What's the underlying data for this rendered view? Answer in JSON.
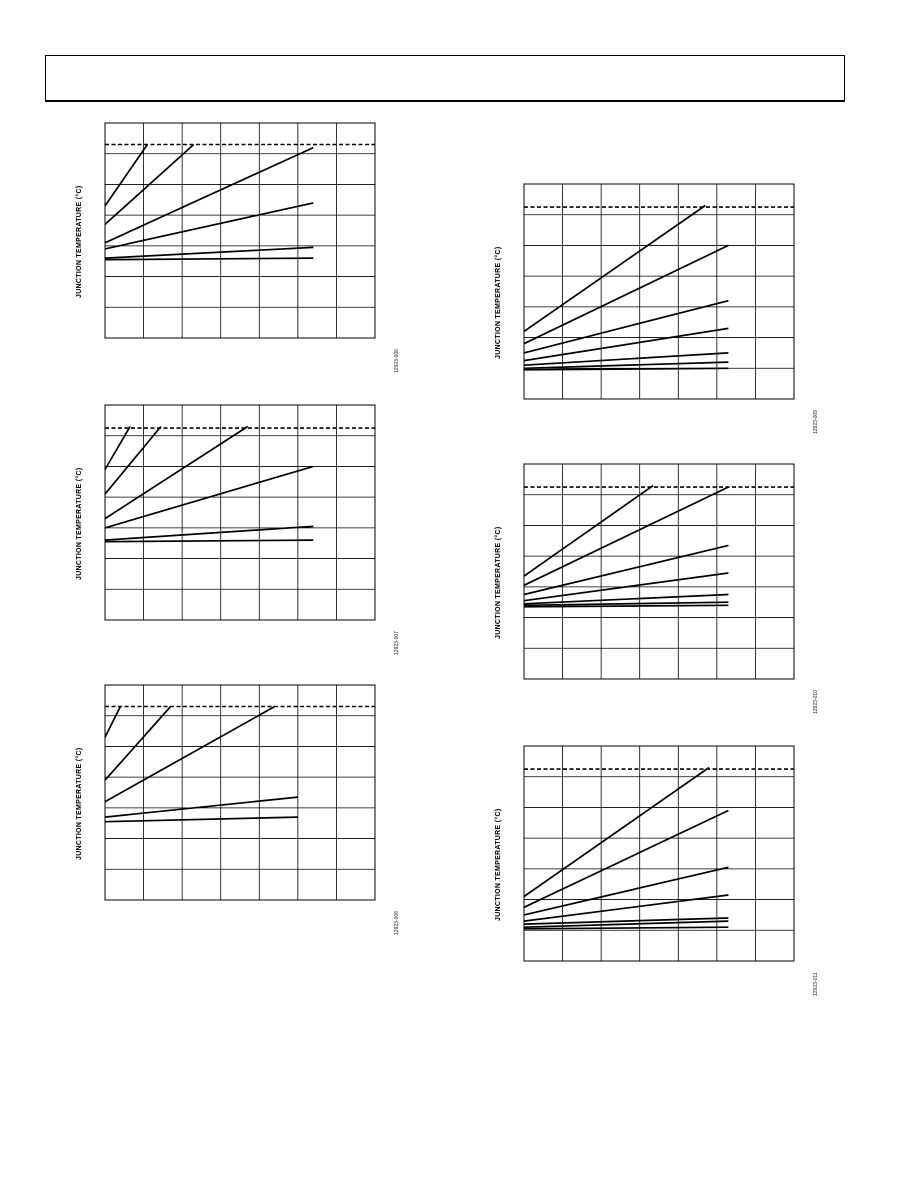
{
  "page": {
    "header": ""
  },
  "figures": [
    {
      "id": "fig-1",
      "ylabel": "JUNCTION TEMPERATURE (°C)",
      "fig_id": "12923-006",
      "chart_data": {
        "type": "line",
        "title": "",
        "xlabel": "",
        "ylabel": "JUNCTION TEMPERATURE (°C)",
        "xlim": [
          0,
          7
        ],
        "ylim": [
          0,
          7
        ],
        "grid": true,
        "limit_line": {
          "y": 6.3,
          "style": "dashed"
        },
        "series": [
          {
            "x": [
              0,
              1.1
            ],
            "y": [
              4.3,
              6.3
            ]
          },
          {
            "x": [
              0,
              2.3
            ],
            "y": [
              3.7,
              6.3
            ]
          },
          {
            "x": [
              0,
              5.4
            ],
            "y": [
              3.1,
              6.2
            ]
          },
          {
            "x": [
              0,
              5.4
            ],
            "y": [
              2.9,
              4.4
            ]
          },
          {
            "x": [
              0,
              5.4
            ],
            "y": [
              2.6,
              2.95
            ]
          },
          {
            "x": [
              0,
              5.4
            ],
            "y": [
              2.55,
              2.6
            ]
          }
        ]
      }
    },
    {
      "id": "fig-2",
      "ylabel": "JUNCTION TEMPERATURE (°C)",
      "fig_id": "12923-007",
      "chart_data": {
        "type": "line",
        "title": "",
        "xlabel": "",
        "ylabel": "JUNCTION TEMPERATURE (°C)",
        "xlim": [
          0,
          7
        ],
        "ylim": [
          0,
          7
        ],
        "grid": true,
        "limit_line": {
          "y": 6.25,
          "style": "dashed"
        },
        "series": [
          {
            "x": [
              0,
              0.65
            ],
            "y": [
              4.9,
              6.3
            ]
          },
          {
            "x": [
              0,
              1.45
            ],
            "y": [
              4.1,
              6.3
            ]
          },
          {
            "x": [
              0,
              3.7
            ],
            "y": [
              3.3,
              6.3
            ]
          },
          {
            "x": [
              0,
              5.4
            ],
            "y": [
              3.0,
              5.0
            ]
          },
          {
            "x": [
              0,
              5.4
            ],
            "y": [
              2.6,
              3.05
            ]
          },
          {
            "x": [
              0,
              5.4
            ],
            "y": [
              2.55,
              2.6
            ]
          }
        ]
      }
    },
    {
      "id": "fig-3",
      "ylabel": "JUNCTION TEMPERATURE (°C)",
      "fig_id": "12923-008",
      "chart_data": {
        "type": "line",
        "title": "",
        "xlabel": "",
        "ylabel": "JUNCTION TEMPERATURE (°C)",
        "xlim": [
          0,
          7
        ],
        "ylim": [
          0,
          7
        ],
        "grid": true,
        "limit_line": {
          "y": 6.3,
          "style": "dashed"
        },
        "series": [
          {
            "x": [
              0,
              0.4
            ],
            "y": [
              5.3,
              6.3
            ]
          },
          {
            "x": [
              0,
              1.7
            ],
            "y": [
              3.9,
              6.3
            ]
          },
          {
            "x": [
              0,
              4.4
            ],
            "y": [
              3.2,
              6.3
            ]
          },
          {
            "x": [
              0,
              5.0
            ],
            "y": [
              2.7,
              3.35
            ]
          },
          {
            "x": [
              0,
              5.0
            ],
            "y": [
              2.55,
              2.7
            ]
          }
        ]
      }
    },
    {
      "id": "fig-4",
      "ylabel": "JUNCTION TEMPERATURE (°C)",
      "fig_id": "12923-009",
      "chart_data": {
        "type": "line",
        "title": "",
        "xlabel": "",
        "ylabel": "JUNCTION TEMPERATURE (°C)",
        "xlim": [
          0,
          7
        ],
        "ylim": [
          0,
          7
        ],
        "grid": true,
        "limit_line": {
          "y": 6.25,
          "style": "dashed"
        },
        "series": [
          {
            "x": [
              0,
              4.7
            ],
            "y": [
              2.2,
              6.3
            ]
          },
          {
            "x": [
              0,
              5.3
            ],
            "y": [
              1.8,
              5.0
            ]
          },
          {
            "x": [
              0,
              5.3
            ],
            "y": [
              1.5,
              3.2
            ]
          },
          {
            "x": [
              0,
              5.3
            ],
            "y": [
              1.25,
              2.3
            ]
          },
          {
            "x": [
              0,
              5.3
            ],
            "y": [
              1.1,
              1.5
            ]
          },
          {
            "x": [
              0,
              5.3
            ],
            "y": [
              1.0,
              1.2
            ]
          },
          {
            "x": [
              0,
              5.3
            ],
            "y": [
              0.95,
              1.0
            ]
          }
        ]
      }
    },
    {
      "id": "fig-5",
      "ylabel": "JUNCTION TEMPERATURE (°C)",
      "fig_id": "12923-010",
      "chart_data": {
        "type": "line",
        "title": "",
        "xlabel": "",
        "ylabel": "JUNCTION TEMPERATURE (°C)",
        "xlim": [
          0,
          7
        ],
        "ylim": [
          0,
          7
        ],
        "grid": true,
        "limit_line": {
          "y": 6.25,
          "style": "dashed"
        },
        "series": [
          {
            "x": [
              0,
              3.35
            ],
            "y": [
              3.35,
              6.3
            ]
          },
          {
            "x": [
              0,
              5.3
            ],
            "y": [
              3.05,
              6.25
            ]
          },
          {
            "x": [
              0,
              5.3
            ],
            "y": [
              2.75,
              4.35
            ]
          },
          {
            "x": [
              0,
              5.3
            ],
            "y": [
              2.55,
              3.45
            ]
          },
          {
            "x": [
              0,
              5.3
            ],
            "y": [
              2.45,
              2.75
            ]
          },
          {
            "x": [
              0,
              5.3
            ],
            "y": [
              2.4,
              2.5
            ]
          },
          {
            "x": [
              0,
              5.3
            ],
            "y": [
              2.35,
              2.4
            ]
          }
        ]
      }
    },
    {
      "id": "fig-6",
      "ylabel": "JUNCTION TEMPERATURE (°C)",
      "fig_id": "12923-011",
      "chart_data": {
        "type": "line",
        "title": "",
        "xlabel": "",
        "ylabel": "JUNCTION TEMPERATURE (°C)",
        "xlim": [
          0,
          7
        ],
        "ylim": [
          0,
          7
        ],
        "grid": true,
        "limit_line": {
          "y": 6.25,
          "style": "dashed"
        },
        "series": [
          {
            "x": [
              0,
              4.8
            ],
            "y": [
              2.1,
              6.3
            ]
          },
          {
            "x": [
              0,
              5.3
            ],
            "y": [
              1.75,
              4.9
            ]
          },
          {
            "x": [
              0,
              5.3
            ],
            "y": [
              1.5,
              3.05
            ]
          },
          {
            "x": [
              0,
              5.3
            ],
            "y": [
              1.3,
              2.15
            ]
          },
          {
            "x": [
              0,
              5.3
            ],
            "y": [
              1.2,
              1.4
            ]
          },
          {
            "x": [
              0,
              5.3
            ],
            "y": [
              1.1,
              1.3
            ]
          },
          {
            "x": [
              0,
              5.3
            ],
            "y": [
              1.05,
              1.1
            ]
          }
        ]
      }
    }
  ]
}
